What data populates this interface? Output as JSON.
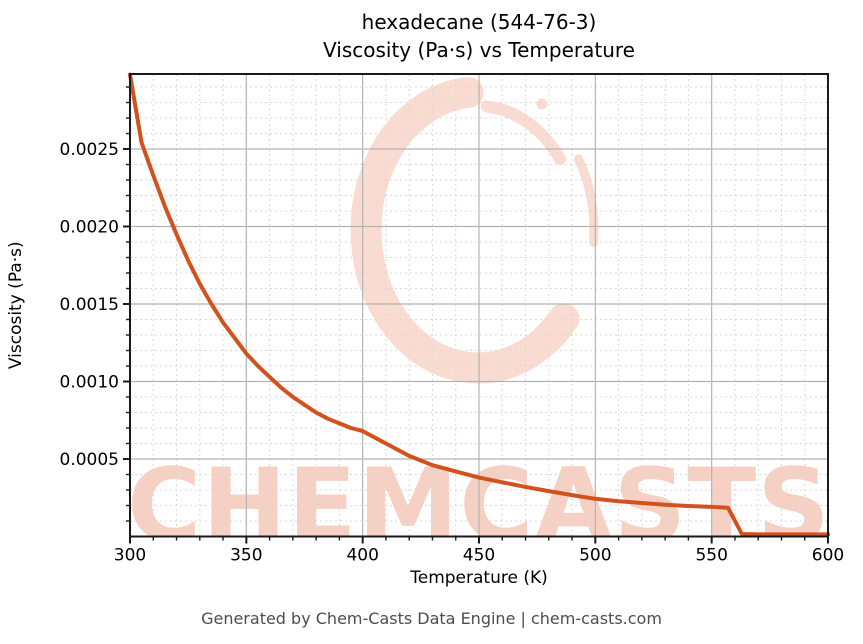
{
  "title": {
    "line1": "hexadecane (544-76-3)",
    "line2": "Viscosity (Pa·s) vs Temperature"
  },
  "footer": "Generated by Chem-Casts Data Engine | chem-casts.com",
  "watermark": {
    "text": "CHEMCASTS",
    "logo": "chemcasts-brush-ring-logo",
    "text_color": "#f7d0c4",
    "logo_color": "#fadbd1"
  },
  "colors": {
    "curve": "#d2521e",
    "spine": "#1a1a1a",
    "major_grid": "#b3b3b3",
    "minor_grid": "#d9d9d9",
    "tick_label": "#000000",
    "footer_text": "#4d4d4d"
  },
  "chart_data": {
    "type": "line",
    "title": "hexadecane (544-76-3) — Viscosity (Pa·s) vs Temperature",
    "xlabel": "Temperature (K)",
    "ylabel": "Viscosity (Pa·s)",
    "xlim": [
      300,
      600
    ],
    "ylim": [
      0,
      0.002984
    ],
    "xticks": [
      300,
      350,
      400,
      450,
      500,
      550,
      600
    ],
    "yticks": [
      0.0005,
      0.001,
      0.0015,
      0.002,
      0.0025
    ],
    "ytick_labels": [
      "0.0005",
      "0.0010",
      "0.0015",
      "0.0020",
      "0.0025"
    ],
    "x_minor_step": 10,
    "y_minor_step": 0.0001,
    "grid": true,
    "legend": false,
    "series": [
      {
        "name": "viscosity",
        "color": "#d2521e",
        "points": [
          [
            300,
            0.00298
          ],
          [
            305,
            0.00254
          ],
          [
            310,
            0.00233
          ],
          [
            315,
            0.00213
          ],
          [
            320,
            0.00195
          ],
          [
            325,
            0.00178
          ],
          [
            330,
            0.00163
          ],
          [
            335,
            0.0015
          ],
          [
            340,
            0.00138
          ],
          [
            345,
            0.00128
          ],
          [
            350,
            0.00118
          ],
          [
            355,
            0.0011
          ],
          [
            360,
            0.00103
          ],
          [
            365,
            0.00096
          ],
          [
            370,
            0.0009
          ],
          [
            375,
            0.00085
          ],
          [
            380,
            0.0008
          ],
          [
            385,
            0.00076
          ],
          [
            390,
            0.00073
          ],
          [
            395,
            0.0007
          ],
          [
            400,
            0.00068
          ],
          [
            410,
            0.0006
          ],
          [
            420,
            0.00052
          ],
          [
            430,
            0.00046
          ],
          [
            440,
            0.00042
          ],
          [
            450,
            0.00038
          ],
          [
            460,
            0.00035
          ],
          [
            470,
            0.00032
          ],
          [
            480,
            0.000293
          ],
          [
            490,
            0.000267
          ],
          [
            500,
            0.000243
          ],
          [
            510,
            0.000228
          ],
          [
            520,
            0.000216
          ],
          [
            530,
            0.000205
          ],
          [
            540,
            0.000197
          ],
          [
            550,
            0.000191
          ],
          [
            557,
            0.000186
          ],
          [
            563,
            1.6e-05
          ],
          [
            570,
            1.35e-05
          ],
          [
            580,
            1.35e-05
          ],
          [
            590,
            1.35e-05
          ],
          [
            600,
            1.35e-05
          ]
        ]
      }
    ]
  }
}
